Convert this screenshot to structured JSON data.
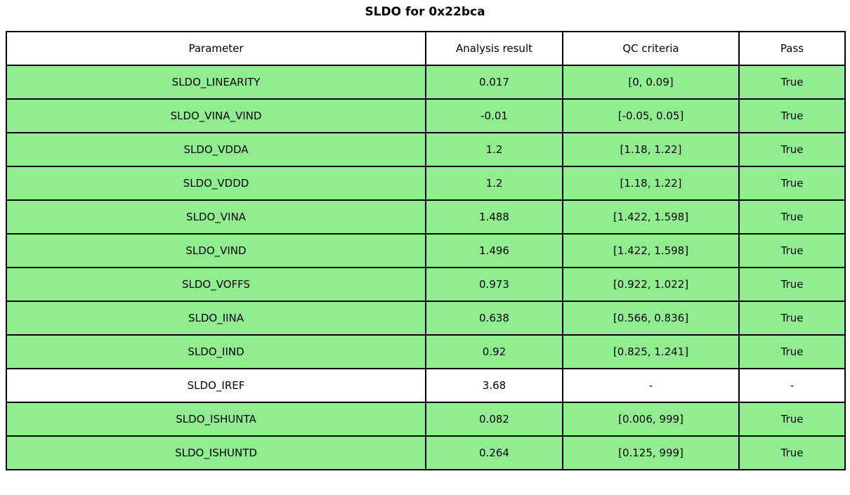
{
  "title": "SLDO for 0x22bca",
  "colors": {
    "pass_green": "#90ee90",
    "neutral_row": "#ffffff",
    "border_black": "#000000"
  },
  "table": {
    "headers": {
      "parameter": "Parameter",
      "result": "Analysis result",
      "qc": "QC criteria",
      "pass": "Pass"
    },
    "rows": [
      {
        "param": "SLDO_LINEARITY",
        "result": "0.017",
        "qc": "[0, 0.09]",
        "pass": "True",
        "highlight": true
      },
      {
        "param": "SLDO_VINA_VIND",
        "result": "-0.01",
        "qc": "[-0.05, 0.05]",
        "pass": "True",
        "highlight": true
      },
      {
        "param": "SLDO_VDDA",
        "result": "1.2",
        "qc": "[1.18, 1.22]",
        "pass": "True",
        "highlight": true
      },
      {
        "param": "SLDO_VDDD",
        "result": "1.2",
        "qc": "[1.18, 1.22]",
        "pass": "True",
        "highlight": true
      },
      {
        "param": "SLDO_VINA",
        "result": "1.488",
        "qc": "[1.422, 1.598]",
        "pass": "True",
        "highlight": true
      },
      {
        "param": "SLDO_VIND",
        "result": "1.496",
        "qc": "[1.422, 1.598]",
        "pass": "True",
        "highlight": true
      },
      {
        "param": "SLDO_VOFFS",
        "result": "0.973",
        "qc": "[0.922, 1.022]",
        "pass": "True",
        "highlight": true
      },
      {
        "param": "SLDO_IINA",
        "result": "0.638",
        "qc": "[0.566, 0.836]",
        "pass": "True",
        "highlight": true
      },
      {
        "param": "SLDO_IIND",
        "result": "0.92",
        "qc": "[0.825, 1.241]",
        "pass": "True",
        "highlight": true
      },
      {
        "param": "SLDO_IREF",
        "result": "3.68",
        "qc": "-",
        "pass": "-",
        "highlight": false
      },
      {
        "param": "SLDO_ISHUNTA",
        "result": "0.082",
        "qc": "[0.006, 999]",
        "pass": "True",
        "highlight": true
      },
      {
        "param": "SLDO_ISHUNTD",
        "result": "0.264",
        "qc": "[0.125, 999]",
        "pass": "True",
        "highlight": true
      }
    ]
  }
}
